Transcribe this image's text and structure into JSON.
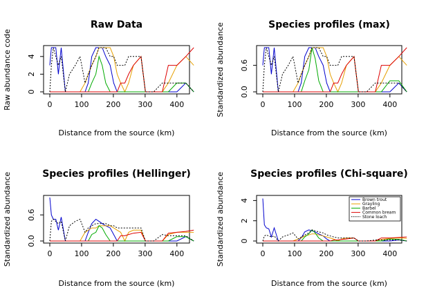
{
  "chart_data": [
    {
      "type": "line",
      "title": "Raw Data",
      "xlabel": "Distance from the source (km)",
      "ylabel": "Raw abundance code",
      "xlim": [
        0,
        450
      ],
      "ylim": [
        0,
        5
      ],
      "xticks": [
        "0",
        "100",
        "200",
        "300",
        "400"
      ],
      "yticks": [
        "0",
        "2",
        "4"
      ],
      "x": [
        0,
        5,
        11,
        19,
        27,
        36,
        49,
        62,
        80,
        95,
        111,
        121,
        132,
        145,
        155,
        165,
        176,
        190,
        201,
        212,
        223,
        236,
        248,
        263,
        287,
        301,
        314,
        327,
        354,
        373,
        400,
        428,
        453
      ],
      "series": [
        {
          "color": "#0000cd",
          "style": "solid",
          "values": [
            3,
            5,
            5,
            5,
            2,
            5,
            0,
            0,
            0,
            0,
            0,
            1,
            4,
            5,
            5,
            5,
            4,
            3,
            1,
            0,
            0,
            0,
            0,
            0,
            0,
            0,
            0,
            0,
            0,
            0,
            0,
            1,
            0
          ]
        },
        {
          "color": "#e69f00",
          "style": "solid",
          "values": [
            0,
            0,
            0,
            0,
            0,
            0,
            0,
            0,
            0,
            0,
            1,
            2,
            3,
            4,
            5,
            5,
            5,
            5,
            4,
            2,
            1,
            0,
            1,
            3,
            4,
            0,
            0,
            0,
            0,
            1,
            3,
            4,
            3
          ]
        },
        {
          "color": "#00aa00",
          "style": "solid",
          "values": [
            0,
            0,
            0,
            0,
            0,
            0,
            0,
            0,
            0,
            0,
            0,
            0,
            1,
            2,
            4,
            3,
            1,
            0,
            0,
            0,
            0,
            0,
            0,
            0,
            0,
            0,
            0,
            0,
            0,
            0,
            1,
            1,
            0
          ]
        },
        {
          "color": "#dd0000",
          "style": "solid",
          "values": [
            0,
            0,
            0,
            0,
            0,
            0,
            0,
            0,
            0,
            0,
            0,
            0,
            0,
            0,
            0,
            0,
            0,
            0,
            0,
            0,
            1,
            1,
            2,
            3,
            4,
            0,
            0,
            0,
            0,
            3,
            3,
            4,
            5
          ]
        },
        {
          "color": "#000000",
          "style": "dotted",
          "values": [
            0,
            3,
            5,
            4,
            3,
            4,
            0,
            2,
            3,
            4,
            1,
            2,
            3,
            4,
            5,
            5,
            5,
            4,
            4,
            3,
            3,
            3,
            4,
            4,
            4,
            0,
            0,
            0,
            1,
            1,
            1,
            1,
            0
          ]
        }
      ]
    },
    {
      "type": "line",
      "title": "Species profiles (max)",
      "xlabel": "Distance from the source (km)",
      "ylabel": "Standardized abundance",
      "xlim": [
        0,
        450
      ],
      "ylim": [
        0,
        1
      ],
      "xticks": [
        "0",
        "100",
        "200",
        "300",
        "400"
      ],
      "yticks": [
        "0.0",
        "0.6"
      ],
      "x": [
        0,
        5,
        11,
        19,
        27,
        36,
        49,
        62,
        80,
        95,
        111,
        121,
        132,
        145,
        155,
        165,
        176,
        190,
        201,
        212,
        223,
        236,
        248,
        263,
        287,
        301,
        314,
        327,
        354,
        373,
        400,
        428,
        453
      ],
      "series": [
        {
          "color": "#0000cd",
          "style": "solid",
          "values": [
            0.6,
            1,
            1,
            1,
            0.4,
            1,
            0,
            0,
            0,
            0,
            0,
            0.2,
            0.8,
            1,
            1,
            1,
            0.8,
            0.6,
            0.2,
            0,
            0,
            0,
            0,
            0,
            0,
            0,
            0,
            0,
            0,
            0,
            0,
            0.2,
            0
          ]
        },
        {
          "color": "#e69f00",
          "style": "solid",
          "values": [
            0,
            0,
            0,
            0,
            0,
            0,
            0,
            0,
            0,
            0,
            0.2,
            0.4,
            0.6,
            0.8,
            1,
            1,
            1,
            1,
            0.8,
            0.4,
            0.2,
            0,
            0.2,
            0.6,
            0.8,
            0,
            0,
            0,
            0,
            0.2,
            0.6,
            0.8,
            0.6
          ]
        },
        {
          "color": "#00aa00",
          "style": "solid",
          "values": [
            0,
            0,
            0,
            0,
            0,
            0,
            0,
            0,
            0,
            0,
            0,
            0,
            0.25,
            0.5,
            1,
            0.75,
            0.25,
            0,
            0,
            0,
            0,
            0,
            0,
            0,
            0,
            0,
            0,
            0,
            0,
            0,
            0.25,
            0.25,
            0
          ]
        },
        {
          "color": "#dd0000",
          "style": "solid",
          "values": [
            0,
            0,
            0,
            0,
            0,
            0,
            0,
            0,
            0,
            0,
            0,
            0,
            0,
            0,
            0,
            0,
            0,
            0,
            0,
            0,
            0.2,
            0.2,
            0.4,
            0.6,
            0.8,
            0,
            0,
            0,
            0,
            0.6,
            0.6,
            0.8,
            1
          ]
        },
        {
          "color": "#000000",
          "style": "dotted",
          "values": [
            0,
            0.6,
            1,
            0.8,
            0.6,
            0.8,
            0,
            0.4,
            0.6,
            0.8,
            0.2,
            0.4,
            0.6,
            0.8,
            1,
            1,
            1,
            0.8,
            0.8,
            0.6,
            0.6,
            0.6,
            0.8,
            0.8,
            0.8,
            0,
            0,
            0,
            0.2,
            0.2,
            0.2,
            0.2,
            0
          ]
        }
      ]
    },
    {
      "type": "line",
      "title": "Species profiles (Hellinger)",
      "xlabel": "Distance from the source (km)",
      "ylabel": "Standardized abundance",
      "xlim": [
        0,
        450
      ],
      "ylim": [
        0,
        1
      ],
      "xticks": [
        "0",
        "100",
        "200",
        "300",
        "400"
      ],
      "yticks": [
        "0.0",
        "0.6"
      ],
      "x": [
        0,
        5,
        11,
        19,
        27,
        36,
        49,
        62,
        80,
        95,
        111,
        121,
        132,
        145,
        155,
        165,
        176,
        190,
        201,
        212,
        223,
        236,
        248,
        263,
        287,
        301,
        314,
        327,
        354,
        373,
        400,
        428,
        453
      ],
      "series": [
        {
          "color": "#0000cd",
          "style": "solid",
          "values": [
            1.0,
            0.6,
            0.5,
            0.5,
            0.25,
            0.55,
            0,
            0,
            0,
            0,
            0,
            0.2,
            0.4,
            0.5,
            0.45,
            0.4,
            0.35,
            0.3,
            0.15,
            0,
            0,
            0,
            0,
            0,
            0,
            0,
            0,
            0,
            0,
            0,
            0,
            0.1,
            0
          ]
        },
        {
          "color": "#e69f00",
          "style": "solid",
          "values": [
            0,
            0,
            0,
            0,
            0,
            0,
            0,
            0,
            0,
            0,
            0.2,
            0.25,
            0.3,
            0.3,
            0.35,
            0.35,
            0.35,
            0.35,
            0.3,
            0.25,
            0.2,
            0,
            0.2,
            0.25,
            0.25,
            0,
            0,
            0,
            0,
            0.15,
            0.2,
            0.2,
            0.2
          ]
        },
        {
          "color": "#00aa00",
          "style": "solid",
          "values": [
            0,
            0,
            0,
            0,
            0,
            0,
            0,
            0,
            0,
            0,
            0,
            0,
            0.15,
            0.2,
            0.35,
            0.3,
            0.15,
            0,
            0,
            0,
            0,
            0,
            0,
            0,
            0,
            0,
            0,
            0,
            0,
            0,
            0.1,
            0.1,
            0
          ]
        },
        {
          "color": "#dd0000",
          "style": "solid",
          "values": [
            0,
            0,
            0,
            0,
            0,
            0,
            0,
            0,
            0,
            0,
            0,
            0,
            0,
            0,
            0,
            0,
            0,
            0,
            0,
            0,
            0.12,
            0.12,
            0.15,
            0.18,
            0.2,
            0,
            0,
            0,
            0,
            0.18,
            0.2,
            0.22,
            0.25
          ]
        },
        {
          "color": "#000000",
          "style": "dotted",
          "values": [
            0,
            0.45,
            0.5,
            0.45,
            0.4,
            0.45,
            0,
            0.35,
            0.45,
            0.5,
            0.2,
            0.3,
            0.35,
            0.4,
            0.4,
            0.4,
            0.4,
            0.35,
            0.35,
            0.3,
            0.3,
            0.3,
            0.3,
            0.3,
            0.3,
            0,
            0,
            0,
            0.15,
            0.12,
            0.12,
            0.12,
            0
          ]
        }
      ]
    },
    {
      "type": "line",
      "title": "Species profiles (Chi-square)",
      "xlabel": "Distance from the source (km)",
      "ylabel": "Standardized abundance",
      "xlim": [
        0,
        450
      ],
      "ylim": [
        0,
        4.3
      ],
      "xticks": [
        "0",
        "100",
        "200",
        "300",
        "400"
      ],
      "yticks": [
        "0",
        "2",
        "4"
      ],
      "legend": {
        "placement": "top-right",
        "entries": [
          {
            "label": "Brown trout",
            "color": "#0000cd",
            "style": "solid"
          },
          {
            "label": "Grayling",
            "color": "#e69f00",
            "style": "solid"
          },
          {
            "label": "Barbel",
            "color": "#00aa00",
            "style": "solid"
          },
          {
            "label": "Common bream",
            "color": "#dd0000",
            "style": "solid"
          },
          {
            "label": "Stone loach",
            "color": "#000000",
            "style": "dotted"
          }
        ]
      },
      "x": [
        0,
        5,
        11,
        19,
        27,
        36,
        49,
        62,
        80,
        95,
        111,
        121,
        132,
        145,
        155,
        165,
        176,
        190,
        201,
        212,
        223,
        236,
        248,
        263,
        287,
        301,
        314,
        327,
        354,
        373,
        400,
        428,
        453
      ],
      "series": [
        {
          "color": "#0000cd",
          "style": "solid",
          "values": [
            4.2,
            1.6,
            1.3,
            1.2,
            0.4,
            1.3,
            0,
            0,
            0,
            0,
            0,
            0.3,
            0.9,
            1.1,
            1.0,
            0.9,
            0.7,
            0.5,
            0.2,
            0,
            0,
            0,
            0,
            0,
            0,
            0,
            0,
            0,
            0,
            0,
            0,
            0.1,
            0
          ]
        },
        {
          "color": "#e69f00",
          "style": "solid",
          "values": [
            0,
            0,
            0,
            0,
            0,
            0,
            0,
            0,
            0,
            0,
            0.2,
            0.3,
            0.5,
            0.6,
            0.7,
            0.7,
            0.6,
            0.5,
            0.4,
            0.3,
            0.2,
            0,
            0.2,
            0.3,
            0.3,
            0,
            0,
            0,
            0,
            0.15,
            0.25,
            0.3,
            0.25
          ]
        },
        {
          "color": "#00aa00",
          "style": "solid",
          "values": [
            0,
            0,
            0,
            0,
            0,
            0,
            0,
            0,
            0,
            0,
            0,
            0,
            0.4,
            0.7,
            1.1,
            0.8,
            0.3,
            0,
            0,
            0,
            0,
            0,
            0,
            0,
            0,
            0,
            0,
            0,
            0,
            0,
            0.2,
            0.15,
            0
          ]
        },
        {
          "color": "#dd0000",
          "style": "solid",
          "values": [
            0,
            0,
            0,
            0,
            0,
            0,
            0,
            0,
            0,
            0,
            0,
            0,
            0,
            0,
            0,
            0,
            0,
            0,
            0,
            0,
            0.1,
            0.1,
            0.15,
            0.2,
            0.3,
            0,
            0,
            0,
            0,
            0.3,
            0.3,
            0.35,
            0.4
          ]
        },
        {
          "color": "#000000",
          "style": "dotted",
          "values": [
            0,
            0.5,
            0.6,
            0.5,
            0.4,
            0.5,
            0,
            0.4,
            0.6,
            0.8,
            0.2,
            0.4,
            0.6,
            0.8,
            1.1,
            1.0,
            0.9,
            0.8,
            0.6,
            0.5,
            0.4,
            0.3,
            0.3,
            0.3,
            0.3,
            0,
            0,
            0,
            0.1,
            0.1,
            0.1,
            0.1,
            0
          ]
        }
      ]
    }
  ]
}
